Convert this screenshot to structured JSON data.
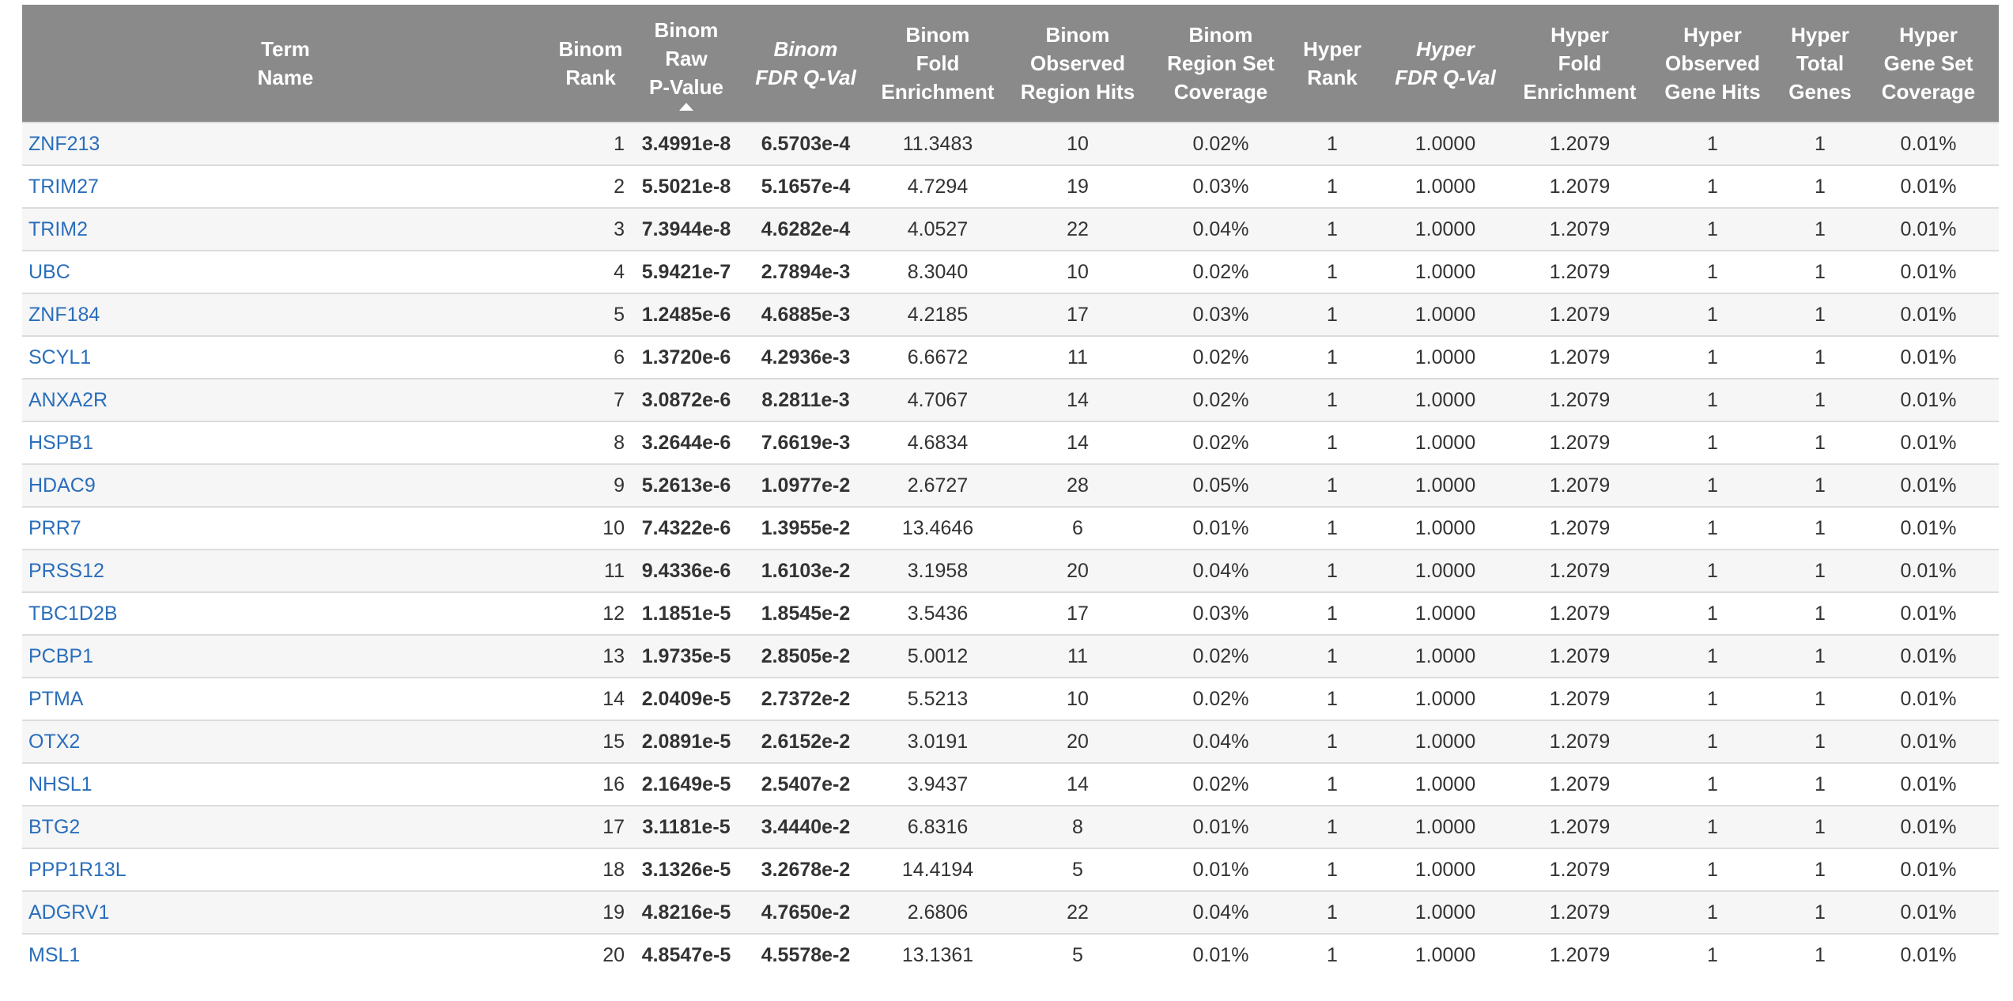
{
  "table": {
    "headers": {
      "term": [
        "Term",
        "Name"
      ],
      "binom_rank": [
        "Binom",
        "Rank"
      ],
      "binom_raw_p": [
        "Binom",
        "Raw",
        "P-Value"
      ],
      "binom_fdr": [
        "Binom",
        "FDR Q-Val"
      ],
      "binom_fold": [
        "Binom",
        "Fold",
        "Enrichment"
      ],
      "binom_obs": [
        "Binom",
        "Observed",
        "Region Hits"
      ],
      "binom_cov": [
        "Binom",
        "Region Set",
        "Coverage"
      ],
      "hyper_rank": [
        "Hyper",
        "Rank"
      ],
      "hyper_fdr": [
        "Hyper",
        "FDR Q-Val"
      ],
      "hyper_fold": [
        "Hyper",
        "Fold",
        "Enrichment"
      ],
      "hyper_obs": [
        "Hyper",
        "Observed",
        "Gene Hits"
      ],
      "hyper_total": [
        "Hyper",
        "Total",
        "Genes"
      ],
      "hyper_cov": [
        "Hyper",
        "Gene Set",
        "Coverage"
      ]
    },
    "sorted_by": "binom_raw_p",
    "rows": [
      [
        "ZNF213",
        "1",
        "3.4991e-8",
        "6.5703e-4",
        "11.3483",
        "10",
        "0.02%",
        "1",
        "1.0000",
        "1.2079",
        "1",
        "1",
        "0.01%"
      ],
      [
        "TRIM27",
        "2",
        "5.5021e-8",
        "5.1657e-4",
        "4.7294",
        "19",
        "0.03%",
        "1",
        "1.0000",
        "1.2079",
        "1",
        "1",
        "0.01%"
      ],
      [
        "TRIM2",
        "3",
        "7.3944e-8",
        "4.6282e-4",
        "4.0527",
        "22",
        "0.04%",
        "1",
        "1.0000",
        "1.2079",
        "1",
        "1",
        "0.01%"
      ],
      [
        "UBC",
        "4",
        "5.9421e-7",
        "2.7894e-3",
        "8.3040",
        "10",
        "0.02%",
        "1",
        "1.0000",
        "1.2079",
        "1",
        "1",
        "0.01%"
      ],
      [
        "ZNF184",
        "5",
        "1.2485e-6",
        "4.6885e-3",
        "4.2185",
        "17",
        "0.03%",
        "1",
        "1.0000",
        "1.2079",
        "1",
        "1",
        "0.01%"
      ],
      [
        "SCYL1",
        "6",
        "1.3720e-6",
        "4.2936e-3",
        "6.6672",
        "11",
        "0.02%",
        "1",
        "1.0000",
        "1.2079",
        "1",
        "1",
        "0.01%"
      ],
      [
        "ANXA2R",
        "7",
        "3.0872e-6",
        "8.2811e-3",
        "4.7067",
        "14",
        "0.02%",
        "1",
        "1.0000",
        "1.2079",
        "1",
        "1",
        "0.01%"
      ],
      [
        "HSPB1",
        "8",
        "3.2644e-6",
        "7.6619e-3",
        "4.6834",
        "14",
        "0.02%",
        "1",
        "1.0000",
        "1.2079",
        "1",
        "1",
        "0.01%"
      ],
      [
        "HDAC9",
        "9",
        "5.2613e-6",
        "1.0977e-2",
        "2.6727",
        "28",
        "0.05%",
        "1",
        "1.0000",
        "1.2079",
        "1",
        "1",
        "0.01%"
      ],
      [
        "PRR7",
        "10",
        "7.4322e-6",
        "1.3955e-2",
        "13.4646",
        "6",
        "0.01%",
        "1",
        "1.0000",
        "1.2079",
        "1",
        "1",
        "0.01%"
      ],
      [
        "PRSS12",
        "11",
        "9.4336e-6",
        "1.6103e-2",
        "3.1958",
        "20",
        "0.04%",
        "1",
        "1.0000",
        "1.2079",
        "1",
        "1",
        "0.01%"
      ],
      [
        "TBC1D2B",
        "12",
        "1.1851e-5",
        "1.8545e-2",
        "3.5436",
        "17",
        "0.03%",
        "1",
        "1.0000",
        "1.2079",
        "1",
        "1",
        "0.01%"
      ],
      [
        "PCBP1",
        "13",
        "1.9735e-5",
        "2.8505e-2",
        "5.0012",
        "11",
        "0.02%",
        "1",
        "1.0000",
        "1.2079",
        "1",
        "1",
        "0.01%"
      ],
      [
        "PTMA",
        "14",
        "2.0409e-5",
        "2.7372e-2",
        "5.5213",
        "10",
        "0.02%",
        "1",
        "1.0000",
        "1.2079",
        "1",
        "1",
        "0.01%"
      ],
      [
        "OTX2",
        "15",
        "2.0891e-5",
        "2.6152e-2",
        "3.0191",
        "20",
        "0.04%",
        "1",
        "1.0000",
        "1.2079",
        "1",
        "1",
        "0.01%"
      ],
      [
        "NHSL1",
        "16",
        "2.1649e-5",
        "2.5407e-2",
        "3.9437",
        "14",
        "0.02%",
        "1",
        "1.0000",
        "1.2079",
        "1",
        "1",
        "0.01%"
      ],
      [
        "BTG2",
        "17",
        "3.1181e-5",
        "3.4440e-2",
        "6.8316",
        "8",
        "0.01%",
        "1",
        "1.0000",
        "1.2079",
        "1",
        "1",
        "0.01%"
      ],
      [
        "PPP1R13L",
        "18",
        "3.1326e-5",
        "3.2678e-2",
        "14.4194",
        "5",
        "0.01%",
        "1",
        "1.0000",
        "1.2079",
        "1",
        "1",
        "0.01%"
      ],
      [
        "ADGRV1",
        "19",
        "4.8216e-5",
        "4.7650e-2",
        "2.6806",
        "22",
        "0.04%",
        "1",
        "1.0000",
        "1.2079",
        "1",
        "1",
        "0.01%"
      ],
      [
        "MSL1",
        "20",
        "4.8547e-5",
        "4.5578e-2",
        "13.1361",
        "5",
        "0.01%",
        "1",
        "1.0000",
        "1.2079",
        "1",
        "1",
        "0.01%"
      ]
    ]
  }
}
